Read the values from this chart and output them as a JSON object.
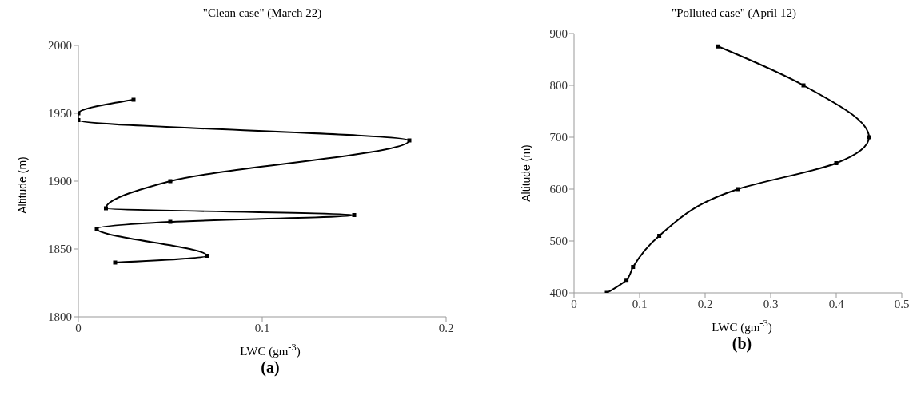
{
  "chart_data": [
    {
      "type": "line",
      "title": "\"Clean case\" (March 22)",
      "xlabel": "LWC (gm$^{-3}$)",
      "ylabel": "Altitude (m)",
      "annotations": [
        "(a)"
      ],
      "x": [
        0.03,
        0,
        0,
        0.18,
        0.05,
        0.015,
        0.15,
        0.05,
        0.01,
        0.07,
        0.02
      ],
      "series": [
        {
          "color": "#000000",
          "values": [
            1960,
            1950,
            1945,
            1930,
            1900,
            1880,
            1875,
            1870,
            1865,
            1845,
            1840
          ]
        }
      ],
      "xlim": [
        0,
        0.2
      ],
      "xticks": [
        0,
        0.1,
        0.2
      ],
      "ylim": [
        1800,
        2000
      ],
      "yticks": [
        1800,
        1850,
        1900,
        1950,
        2000
      ],
      "grid": false,
      "marker": "square",
      "line_style": "solid"
    },
    {
      "type": "line",
      "title": "\"Polluted case\" (April 12)",
      "xlabel": "LWC (gm$^{-3}$)",
      "ylabel": "Altitude (m)",
      "annotations": [
        "(b)"
      ],
      "x": [
        0.05,
        0.08,
        0.09,
        0.13,
        0.25,
        0.4,
        0.45,
        0.35,
        0.22
      ],
      "series": [
        {
          "color": "#000000",
          "values": [
            400,
            425,
            450,
            510,
            600,
            650,
            700,
            800,
            875
          ]
        }
      ],
      "xlim": [
        0,
        0.5
      ],
      "xticks": [
        0,
        0.1,
        0.2,
        0.3,
        0.4,
        0.5
      ],
      "ylim": [
        400,
        900
      ],
      "yticks": [
        400,
        500,
        600,
        700,
        800,
        900
      ],
      "grid": false,
      "marker": "square",
      "line_style": "solid"
    }
  ]
}
